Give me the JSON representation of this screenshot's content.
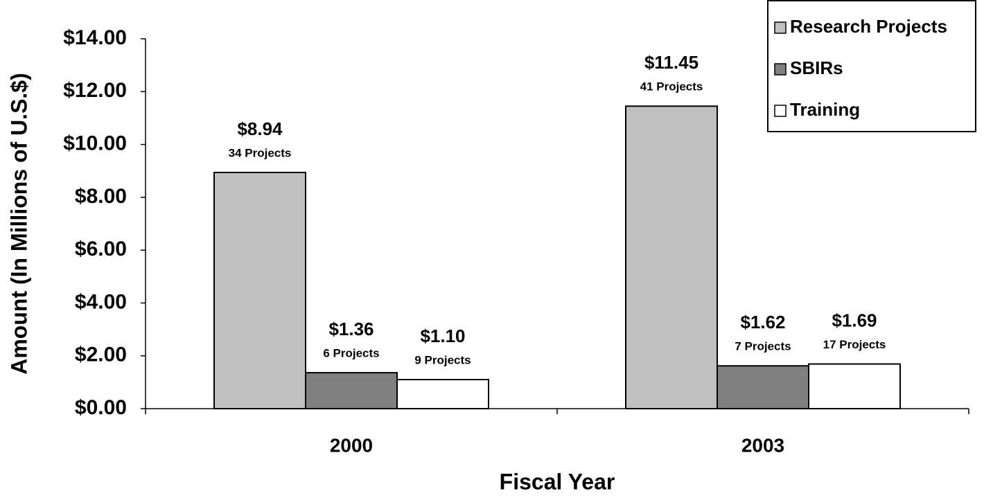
{
  "chart_data": {
    "type": "bar",
    "categories": [
      "2000",
      "2003"
    ],
    "series": [
      {
        "name": "Research Projects",
        "color": "#c0c0c0",
        "values": [
          8.94,
          11.45
        ],
        "value_labels": [
          "$8.94",
          "$11.45"
        ],
        "project_labels": [
          "34 Projects",
          "41 Projects"
        ]
      },
      {
        "name": "SBIRs",
        "color": "#808080",
        "values": [
          1.36,
          1.62
        ],
        "value_labels": [
          "$1.36",
          "$1.62"
        ],
        "project_labels": [
          "6 Projects",
          "7 Projects"
        ]
      },
      {
        "name": "Training",
        "color": "#ffffff",
        "values": [
          1.1,
          1.69
        ],
        "value_labels": [
          "$1.10",
          "$1.69"
        ],
        "project_labels": [
          "9 Projects",
          "17 Projects"
        ]
      }
    ],
    "ylim": [
      0,
      14
    ],
    "yticks": [
      {
        "value": 0,
        "label": "$0.00"
      },
      {
        "value": 2,
        "label": "$2.00"
      },
      {
        "value": 4,
        "label": "$4.00"
      },
      {
        "value": 6,
        "label": "$6.00"
      },
      {
        "value": 8,
        "label": "$8.00"
      },
      {
        "value": 10,
        "label": "$10.00"
      },
      {
        "value": 12,
        "label": "$12.00"
      },
      {
        "value": 14,
        "label": "$14.00"
      }
    ],
    "xlabel": "Fiscal Year",
    "ylabel": "Amount (In Millions of U.S.$)",
    "grid": false,
    "legend": "top-right"
  }
}
